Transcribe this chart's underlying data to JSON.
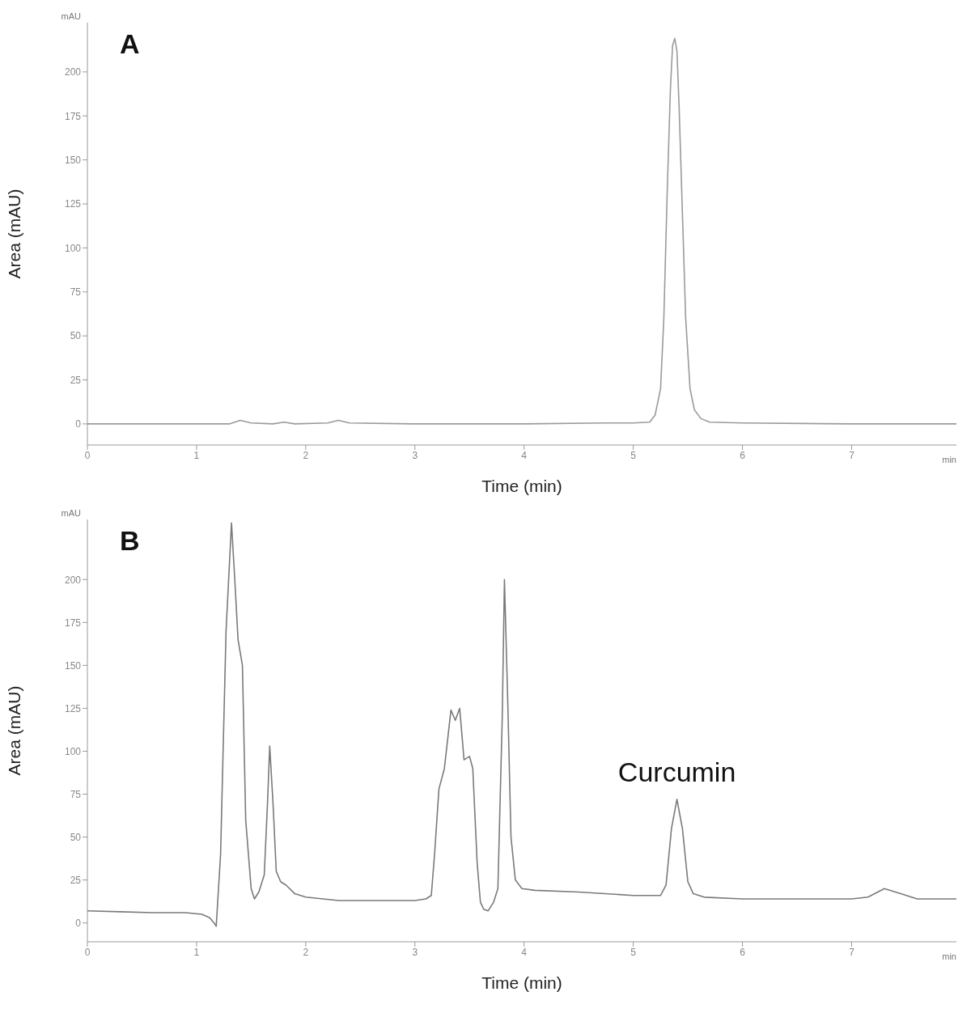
{
  "chart_data": [
    {
      "type": "line",
      "title": "A",
      "xlabel": "Time (min)",
      "ylabel": "Area (mAU)",
      "annotations": [
        "mAU",
        "min"
      ],
      "xlim": [
        0,
        7.96
      ],
      "xticks": [
        0,
        1,
        2,
        3,
        4,
        5,
        6,
        7
      ],
      "ylim": [
        -12,
        228
      ],
      "yticks": [
        0,
        25,
        50,
        75,
        100,
        125,
        150,
        175,
        200
      ],
      "marker": "none",
      "line_style": "solid",
      "series": [
        {
          "color": "#9a9a9a",
          "x": [
            0,
            1.3,
            1.4,
            1.5,
            1.7,
            1.8,
            1.9,
            2.2,
            2.3,
            2.4,
            3,
            4,
            4.75,
            5,
            5.15,
            5.2,
            5.25,
            5.28,
            5.31,
            5.34,
            5.36,
            5.38,
            5.4,
            5.42,
            5.45,
            5.48,
            5.52,
            5.56,
            5.62,
            5.7,
            6,
            7,
            7.96
          ],
          "values": [
            0,
            0,
            2,
            0.5,
            0,
            1,
            0,
            0.5,
            2,
            0.5,
            0,
            0,
            0.5,
            0.5,
            1,
            5,
            20,
            60,
            130,
            190,
            215,
            219,
            212,
            180,
            120,
            60,
            20,
            8,
            3,
            1,
            0.5,
            0,
            0
          ]
        }
      ]
    },
    {
      "type": "line",
      "title": "B",
      "xlabel": "Time (min)",
      "ylabel": "Area (mAU)",
      "annotations": [
        "mAU",
        "min",
        {
          "text": "Curcumin",
          "x": 5.4,
          "y": 72
        }
      ],
      "xlim": [
        0,
        7.96
      ],
      "xticks": [
        0,
        1,
        2,
        3,
        4,
        5,
        6,
        7
      ],
      "ylim": [
        -11,
        235
      ],
      "yticks": [
        0,
        25,
        50,
        75,
        100,
        125,
        150,
        175,
        200
      ],
      "marker": "none",
      "line_style": "solid",
      "series": [
        {
          "color": "#7a7a7a",
          "x": [
            0,
            0.3,
            0.6,
            0.9,
            1.05,
            1.12,
            1.16,
            1.18,
            1.22,
            1.27,
            1.32,
            1.35,
            1.38,
            1.42,
            1.45,
            1.5,
            1.53,
            1.57,
            1.62,
            1.65,
            1.67,
            1.7,
            1.73,
            1.77,
            1.82,
            1.9,
            2,
            2.3,
            2.7,
            3,
            3.1,
            3.15,
            3.18,
            3.22,
            3.27,
            3.33,
            3.37,
            3.41,
            3.45,
            3.5,
            3.53,
            3.57,
            3.6,
            3.63,
            3.67,
            3.72,
            3.76,
            3.8,
            3.82,
            3.85,
            3.88,
            3.92,
            3.98,
            4.1,
            4.5,
            5,
            5.25,
            5.3,
            5.35,
            5.4,
            5.45,
            5.5,
            5.55,
            5.65,
            6,
            6.5,
            7,
            7.15,
            7.3,
            7.45,
            7.6,
            7.96
          ],
          "values": [
            7,
            6.5,
            6,
            6,
            5,
            3,
            0,
            -2,
            40,
            170,
            233,
            200,
            165,
            150,
            60,
            20,
            14,
            18,
            28,
            70,
            103,
            70,
            30,
            24,
            22,
            17,
            15,
            13,
            13,
            13,
            14,
            16,
            40,
            78,
            90,
            124,
            118,
            125,
            95,
            97,
            90,
            35,
            12,
            8,
            7,
            12,
            20,
            120,
            200,
            130,
            50,
            25,
            20,
            19,
            18,
            16,
            16,
            22,
            55,
            72,
            55,
            24,
            17,
            15,
            14,
            14,
            14,
            15,
            20,
            17,
            14,
            14
          ]
        }
      ]
    }
  ]
}
